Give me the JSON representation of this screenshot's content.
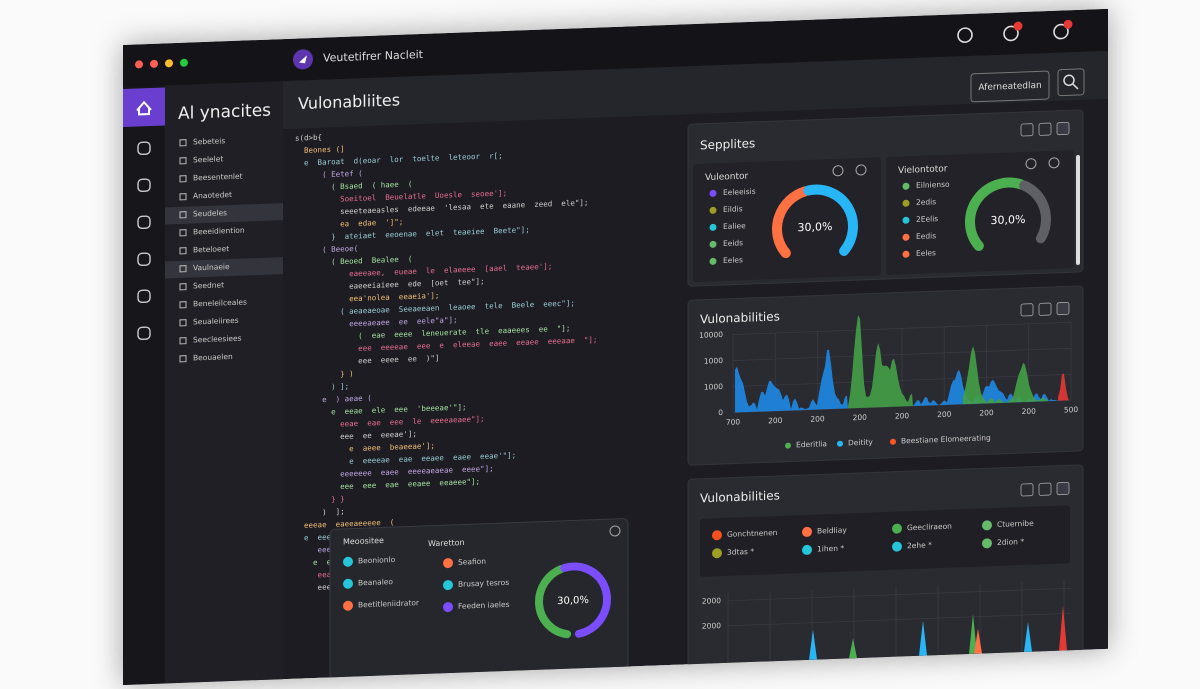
{
  "window": {
    "brand": "Veutetifrer Nacleit",
    "button": "Aferneatedlan"
  },
  "sidebar": {
    "title": "Al ynacites",
    "items": [
      "Sebeteis",
      "Seelelet",
      "Beesentenlet",
      "Anaotedet",
      "Seudeles",
      "Beeeidiention",
      "Beteloeet",
      "Vaulnaeie",
      "Seednet",
      "Beneleilceales",
      "Seualeiirees",
      "Seecleesiees",
      "Beouaelen"
    ]
  },
  "main": {
    "title": "Vulonabliites",
    "code": [
      "s(d>b{",
      "  Beones (]",
      "  e  Baroat  d(eoar  lor  toelte  leteoor  r[;",
      "      ( Eetef (",
      "        ( Bsaed  ( haee  (",
      "          Soeitoel  Beuelatle  Uoesle  seoee'];",
      "          seeeteaeasles  edeeae  'lesaa  ete  eaane  zeed  ele\"];",
      "          ea  edae  ']\";",
      "        }  ateiaet  eeoenae  elet  teaeiee  Beete\"];",
      "      ( Beeoe(",
      "        ( Beoed  Bealee  (",
      "            eaeeaee,  eueae  le  elaeeee  [aael  teaee'];",
      "            eaeeeiaieee  ede  [oet  tee\"];",
      "            eea'nolea  eeaeia'];",
      "          ( aeaeaeoae  Seeaeeaen  leaoee  tele  Beele  eeec\"];",
      "            eeeeaeaee  ee  eele\"a\"];",
      "              (  eae  eeee  leneuerate  tle  eaaeees  ee  \"];",
      "              eee  eeeeae  eee  e  eleeae  eaee  eeaee  eeeaae  \"];",
      "              eee  eeee  ee  )\"]",
      "          } )",
      "        ) ];",
      "      e  ) aeae (",
      "        e  eeae  ele  eee  'beeeae'\"];",
      "          eeae  eae  eee  le  eeeeaeaee\"];",
      "          eee  ee  eeeae'];",
      "            e  aeee  beaeeae'];",
      "            e  eeeeae  eae  eeaee  eaee  eeae'\"];",
      "          eeeeeee  eaee  eeeeaeaeae  eeee\"];",
      "          eee  eee  eae  eeaee  eeaeee\"];",
      "        } }",
      "      )  ];",
      "  eeeae  eaeeaeeeee  (",
      "  e  eeeeaee  eeee  Eeeeeeae  teeae  e  [ ;",
      "     eeeeae  ee",
      "    e  eee  e  eeeeae  eeeeae'];",
      "     eeae  eeeae  ee  eeee\"];",
      "     eeeeaee  eeeee  ee  te  eeeee\"];"
    ]
  },
  "severity_panel": {
    "title": "Sepplites",
    "gauges": [
      {
        "label": "Vuleontor",
        "value": "30,0%",
        "items": [
          {
            "name": "Eeleeisis",
            "color": "#7c4dff"
          },
          {
            "name": "Eildis",
            "color": "#9e9d24"
          },
          {
            "name": "Ealiee",
            "color": "#26c6da"
          },
          {
            "name": "Eeids",
            "color": "#66bb6a"
          },
          {
            "name": "Eeles",
            "color": "#66bb6a"
          }
        ]
      },
      {
        "label": "Vielontotor",
        "value": "30,0%",
        "items": [
          {
            "name": "Eilnienso",
            "color": "#66bb6a"
          },
          {
            "name": "2edis",
            "color": "#9e9d24"
          },
          {
            "name": "2Eelis",
            "color": "#26c6da"
          },
          {
            "name": "Eedis",
            "color": "#ff7043"
          },
          {
            "name": "Eeles",
            "color": "#ff7043"
          }
        ]
      }
    ]
  },
  "trend_panel": {
    "title": "Vulonabilities",
    "yticks": [
      "10000",
      "1000",
      "1000",
      "0"
    ],
    "xticks": [
      "700",
      "200",
      "200",
      "200",
      "200",
      "200",
      "200",
      "200",
      "500"
    ],
    "legend": [
      {
        "name": "Ederitlia",
        "color": "#4caf50"
      },
      {
        "name": "Deitity",
        "color": "#29b6f6"
      },
      {
        "name": "Beestiane Elomeerating",
        "color": "#ff5722"
      }
    ]
  },
  "breakdown_panel": {
    "title": "Vulonabilities",
    "yticks": [
      "2000",
      "2000"
    ],
    "legend": [
      {
        "name": "Gonchtnenen",
        "color": "#f4511e"
      },
      {
        "name": "Beldliay",
        "color": "#ff7043"
      },
      {
        "name": "Geecliraeon",
        "color": "#4caf50"
      },
      {
        "name": "Ctuernibe",
        "color": "#66bb6a"
      },
      {
        "name": "3dtas *",
        "color": "#9e9d24"
      },
      {
        "name": "1ihen *",
        "color": "#26c6da"
      },
      {
        "name": "2ehe *",
        "color": "#26c6da"
      },
      {
        "name": "2dion *",
        "color": "#66bb6a"
      }
    ]
  },
  "popup": {
    "title": "Meoositee",
    "subtitle": "Waretton",
    "value": "30,0%",
    "left_items": [
      {
        "name": "Beonionlo",
        "color": "#26c6da"
      },
      {
        "name": "Beanaleo",
        "color": "#26c6da"
      },
      {
        "name": "Beetitleniidrator",
        "color": "#ff7043"
      }
    ],
    "right_items": [
      {
        "name": "Seafion",
        "color": "#ff7043"
      },
      {
        "name": "Brusay tesros",
        "color": "#26c6da"
      },
      {
        "name": "Feeden iaeles",
        "color": "#7c4dff"
      }
    ]
  }
}
